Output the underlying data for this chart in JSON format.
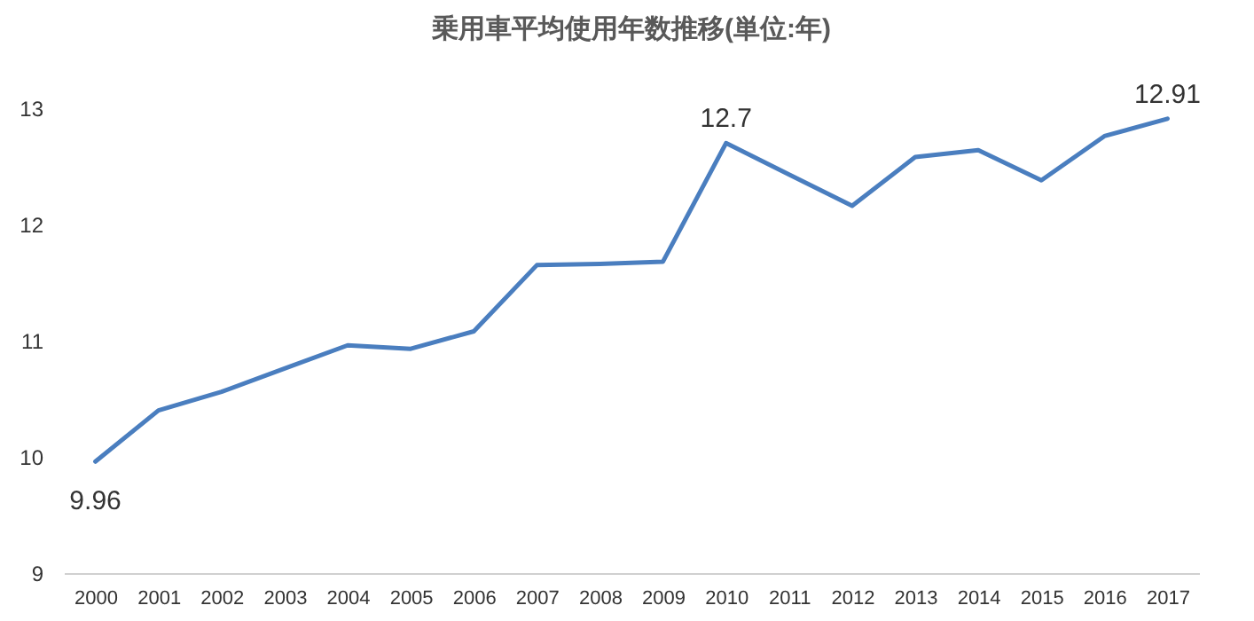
{
  "chart_data": {
    "type": "line",
    "title": "乗用車平均使用年数推移(単位:年)",
    "categories": [
      "2000",
      "2001",
      "2002",
      "2003",
      "2004",
      "2005",
      "2006",
      "2007",
      "2008",
      "2009",
      "2010",
      "2011",
      "2012",
      "2013",
      "2014",
      "2015",
      "2016",
      "2017"
    ],
    "series": [
      {
        "color": "#4a7ebf",
        "values": [
          9.96,
          10.4,
          10.56,
          10.76,
          10.96,
          10.93,
          11.08,
          11.65,
          11.66,
          11.68,
          12.7,
          12.43,
          12.16,
          12.58,
          12.64,
          12.38,
          12.76,
          12.91
        ],
        "value_labels": [
          "9.96",
          null,
          null,
          null,
          null,
          null,
          null,
          null,
          null,
          null,
          "12.7",
          null,
          null,
          null,
          null,
          null,
          null,
          "12.91"
        ]
      }
    ],
    "ylim": [
      9,
      13
    ],
    "yticks": [
      9,
      10,
      11,
      12,
      13
    ],
    "grid": false,
    "marker": "none",
    "line_style": "solid"
  }
}
